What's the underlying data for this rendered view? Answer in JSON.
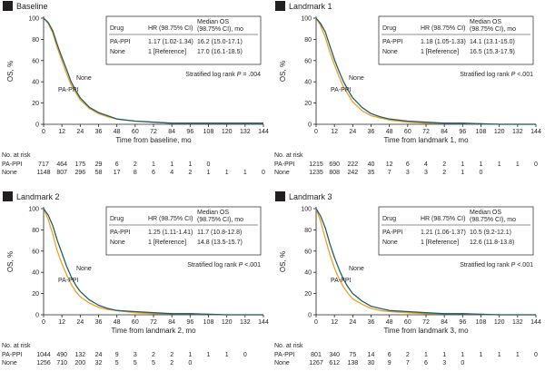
{
  "colors": {
    "pa_ppi": "#f0a020",
    "none": "#1f5f6e",
    "axis": "#231f20",
    "badge_bg": "#231f20",
    "badge_fg": "#ffffff"
  },
  "shared": {
    "ylabel": "OS, %",
    "yticks": [
      0,
      20,
      40,
      60,
      80,
      100
    ],
    "xticks": [
      0,
      12,
      24,
      36,
      48,
      60,
      72,
      84,
      96,
      108,
      120,
      132,
      144
    ],
    "risk_header": "No. at risk",
    "table_headers": {
      "drug": "Drug",
      "hr": "HR (98.75% CI)",
      "median_line1": "Median OS",
      "median_line2": "(98.75% CI), mo"
    }
  },
  "chart_data": [
    {
      "type": "line",
      "badge": "A",
      "title": "Baseline",
      "xlabel": "Time from baseline, mo",
      "ylabel": "OS, %",
      "xlim": [
        0,
        144
      ],
      "ylim": [
        0,
        100
      ],
      "table": [
        {
          "drug": "PA-PPI",
          "hr": "1.17 (1.02-1.34)",
          "median": "16.2 (15.0-17.1)"
        },
        {
          "drug": "None",
          "hr": "1 [Reference]",
          "median": "17.0 (16.1-18.5)"
        }
      ],
      "logrank_prefix": "Stratified log rank ",
      "logrank_p": "P",
      "logrank_value": " = .004",
      "curve_labels": [
        "None",
        "PA-PPI"
      ],
      "series": [
        {
          "name": "PA-PPI",
          "x": [
            0,
            3,
            6,
            9,
            12,
            15,
            18,
            21,
            24,
            30,
            36,
            42,
            48,
            60,
            72,
            84,
            96,
            120,
            144
          ],
          "y": [
            100,
            95,
            86,
            72,
            60,
            48,
            37,
            30,
            23,
            15,
            10,
            7,
            5,
            3,
            2,
            1,
            1,
            1,
            1
          ]
        },
        {
          "name": "None",
          "x": [
            0,
            3,
            6,
            9,
            12,
            15,
            18,
            21,
            24,
            30,
            36,
            42,
            48,
            60,
            72,
            84,
            96,
            120,
            144
          ],
          "y": [
            100,
            96,
            88,
            75,
            63,
            52,
            40,
            32,
            25,
            16,
            11,
            8,
            5,
            3,
            2,
            1,
            1,
            1,
            1
          ]
        }
      ],
      "risk": [
        {
          "name": "PA-PPI",
          "values": [
            "717",
            "464",
            "175",
            "29",
            "6",
            "2",
            "1",
            "1",
            "1",
            "0"
          ]
        },
        {
          "name": "None",
          "values": [
            "1148",
            "807",
            "296",
            "58",
            "17",
            "8",
            "6",
            "4",
            "2",
            "1",
            "1",
            "1",
            "0"
          ]
        }
      ]
    },
    {
      "type": "line",
      "badge": "B",
      "title": "Landmark 1",
      "xlabel": "Time from landmark 1, mo",
      "ylabel": "OS, %",
      "xlim": [
        0,
        144
      ],
      "ylim": [
        0,
        100
      ],
      "table": [
        {
          "drug": "PA-PPI",
          "hr": "1.18 (1.05-1.33)",
          "median": "14.1 (13.1-15.0)"
        },
        {
          "drug": "None",
          "hr": "1 [Reference]",
          "median": "16.5 (15.3-17.9)"
        }
      ],
      "logrank_prefix": "Stratified log rank ",
      "logrank_p": "P",
      "logrank_value": " <.001",
      "curve_labels": [
        "None",
        "PA-PPI"
      ],
      "series": [
        {
          "name": "PA-PPI",
          "x": [
            0,
            3,
            6,
            9,
            12,
            15,
            18,
            21,
            24,
            30,
            36,
            42,
            48,
            60,
            72,
            84,
            96,
            120,
            144
          ],
          "y": [
            100,
            93,
            82,
            68,
            56,
            45,
            35,
            28,
            21,
            13,
            8,
            6,
            4,
            2,
            1,
            1,
            1,
            0,
            0
          ]
        },
        {
          "name": "None",
          "x": [
            0,
            3,
            6,
            9,
            12,
            15,
            18,
            21,
            24,
            30,
            36,
            42,
            48,
            60,
            72,
            84,
            96,
            120,
            144
          ],
          "y": [
            100,
            95,
            87,
            74,
            61,
            50,
            40,
            32,
            25,
            16,
            10,
            7,
            5,
            3,
            2,
            1,
            1,
            0,
            0
          ]
        }
      ],
      "risk": [
        {
          "name": "PA-PPI",
          "values": [
            "1215",
            "690",
            "222",
            "40",
            "12",
            "6",
            "4",
            "2",
            "1",
            "1",
            "1",
            "1",
            "0"
          ]
        },
        {
          "name": "None",
          "values": [
            "1235",
            "808",
            "242",
            "35",
            "7",
            "3",
            "3",
            "2",
            "1",
            "0"
          ]
        }
      ]
    },
    {
      "type": "line",
      "badge": "C",
      "title": "Landmark 2",
      "xlabel": "Time from landmark 2, mo",
      "ylabel": "OS, %",
      "xlim": [
        0,
        144
      ],
      "ylim": [
        0,
        100
      ],
      "table": [
        {
          "drug": "PA-PPI",
          "hr": "1.25 (1.11-1.41)",
          "median": "11.7 (10.8-12.8)"
        },
        {
          "drug": "None",
          "hr": "1 [Reference]",
          "median": "14.8 (13.5-15.7)"
        }
      ],
      "logrank_prefix": "Stratified log rank ",
      "logrank_p": "P",
      "logrank_value": " <.001",
      "curve_labels": [
        "None",
        "PA-PPI"
      ],
      "series": [
        {
          "name": "PA-PPI",
          "x": [
            0,
            3,
            6,
            9,
            12,
            15,
            18,
            21,
            24,
            30,
            36,
            42,
            48,
            60,
            72,
            84,
            96,
            120,
            144
          ],
          "y": [
            100,
            90,
            76,
            60,
            48,
            38,
            29,
            22,
            17,
            11,
            7,
            5,
            4,
            2,
            1,
            1,
            1,
            0,
            0
          ]
        },
        {
          "name": "None",
          "x": [
            0,
            3,
            6,
            9,
            12,
            15,
            18,
            21,
            24,
            30,
            36,
            42,
            48,
            60,
            72,
            84,
            96,
            120,
            144
          ],
          "y": [
            100,
            94,
            84,
            70,
            58,
            46,
            36,
            28,
            22,
            14,
            9,
            6,
            4,
            3,
            2,
            1,
            1,
            0,
            0
          ]
        }
      ],
      "risk": [
        {
          "name": "PA-PPI",
          "values": [
            "1044",
            "490",
            "132",
            "24",
            "9",
            "3",
            "2",
            "2",
            "1",
            "1",
            "1",
            "0"
          ]
        },
        {
          "name": "None",
          "values": [
            "1256",
            "710",
            "200",
            "32",
            "5",
            "5",
            "5",
            "2",
            "0"
          ]
        }
      ]
    },
    {
      "type": "line",
      "badge": "D",
      "title": "Landmark 3",
      "xlabel": "Time from landmark 3, mo",
      "ylabel": "OS, %",
      "xlim": [
        0,
        144
      ],
      "ylim": [
        0,
        100
      ],
      "table": [
        {
          "drug": "PA-PPI",
          "hr": "1.21 (1.06-1.37)",
          "median": "10.5 (9.2-12.1)"
        },
        {
          "drug": "None",
          "hr": "1 [Reference]",
          "median": "12.6 (11.8-13.8)"
        }
      ],
      "logrank_prefix": "Stratified log rank ",
      "logrank_p": "P",
      "logrank_value": " <.001",
      "curve_labels": [
        "None",
        "PA-PPI"
      ],
      "series": [
        {
          "name": "PA-PPI",
          "x": [
            0,
            3,
            6,
            9,
            12,
            15,
            18,
            21,
            24,
            30,
            36,
            42,
            48,
            60,
            72,
            84,
            96,
            120,
            144
          ],
          "y": [
            100,
            88,
            72,
            57,
            44,
            34,
            26,
            20,
            15,
            10,
            6,
            4,
            3,
            2,
            1,
            1,
            1,
            0,
            0
          ]
        },
        {
          "name": "None",
          "x": [
            0,
            3,
            6,
            9,
            12,
            15,
            18,
            21,
            24,
            30,
            36,
            42,
            48,
            60,
            72,
            84,
            96,
            120,
            144
          ],
          "y": [
            100,
            93,
            82,
            67,
            54,
            43,
            33,
            26,
            20,
            13,
            8,
            6,
            4,
            3,
            2,
            1,
            1,
            0,
            0
          ]
        }
      ],
      "risk": [
        {
          "name": "PA-PPI",
          "values": [
            "801",
            "340",
            "75",
            "14",
            "6",
            "2",
            "1",
            "1",
            "1",
            "1",
            "1",
            "1",
            "0"
          ]
        },
        {
          "name": "None",
          "values": [
            "1267",
            "612",
            "138",
            "30",
            "9",
            "7",
            "6",
            "3",
            "0"
          ]
        }
      ]
    }
  ]
}
